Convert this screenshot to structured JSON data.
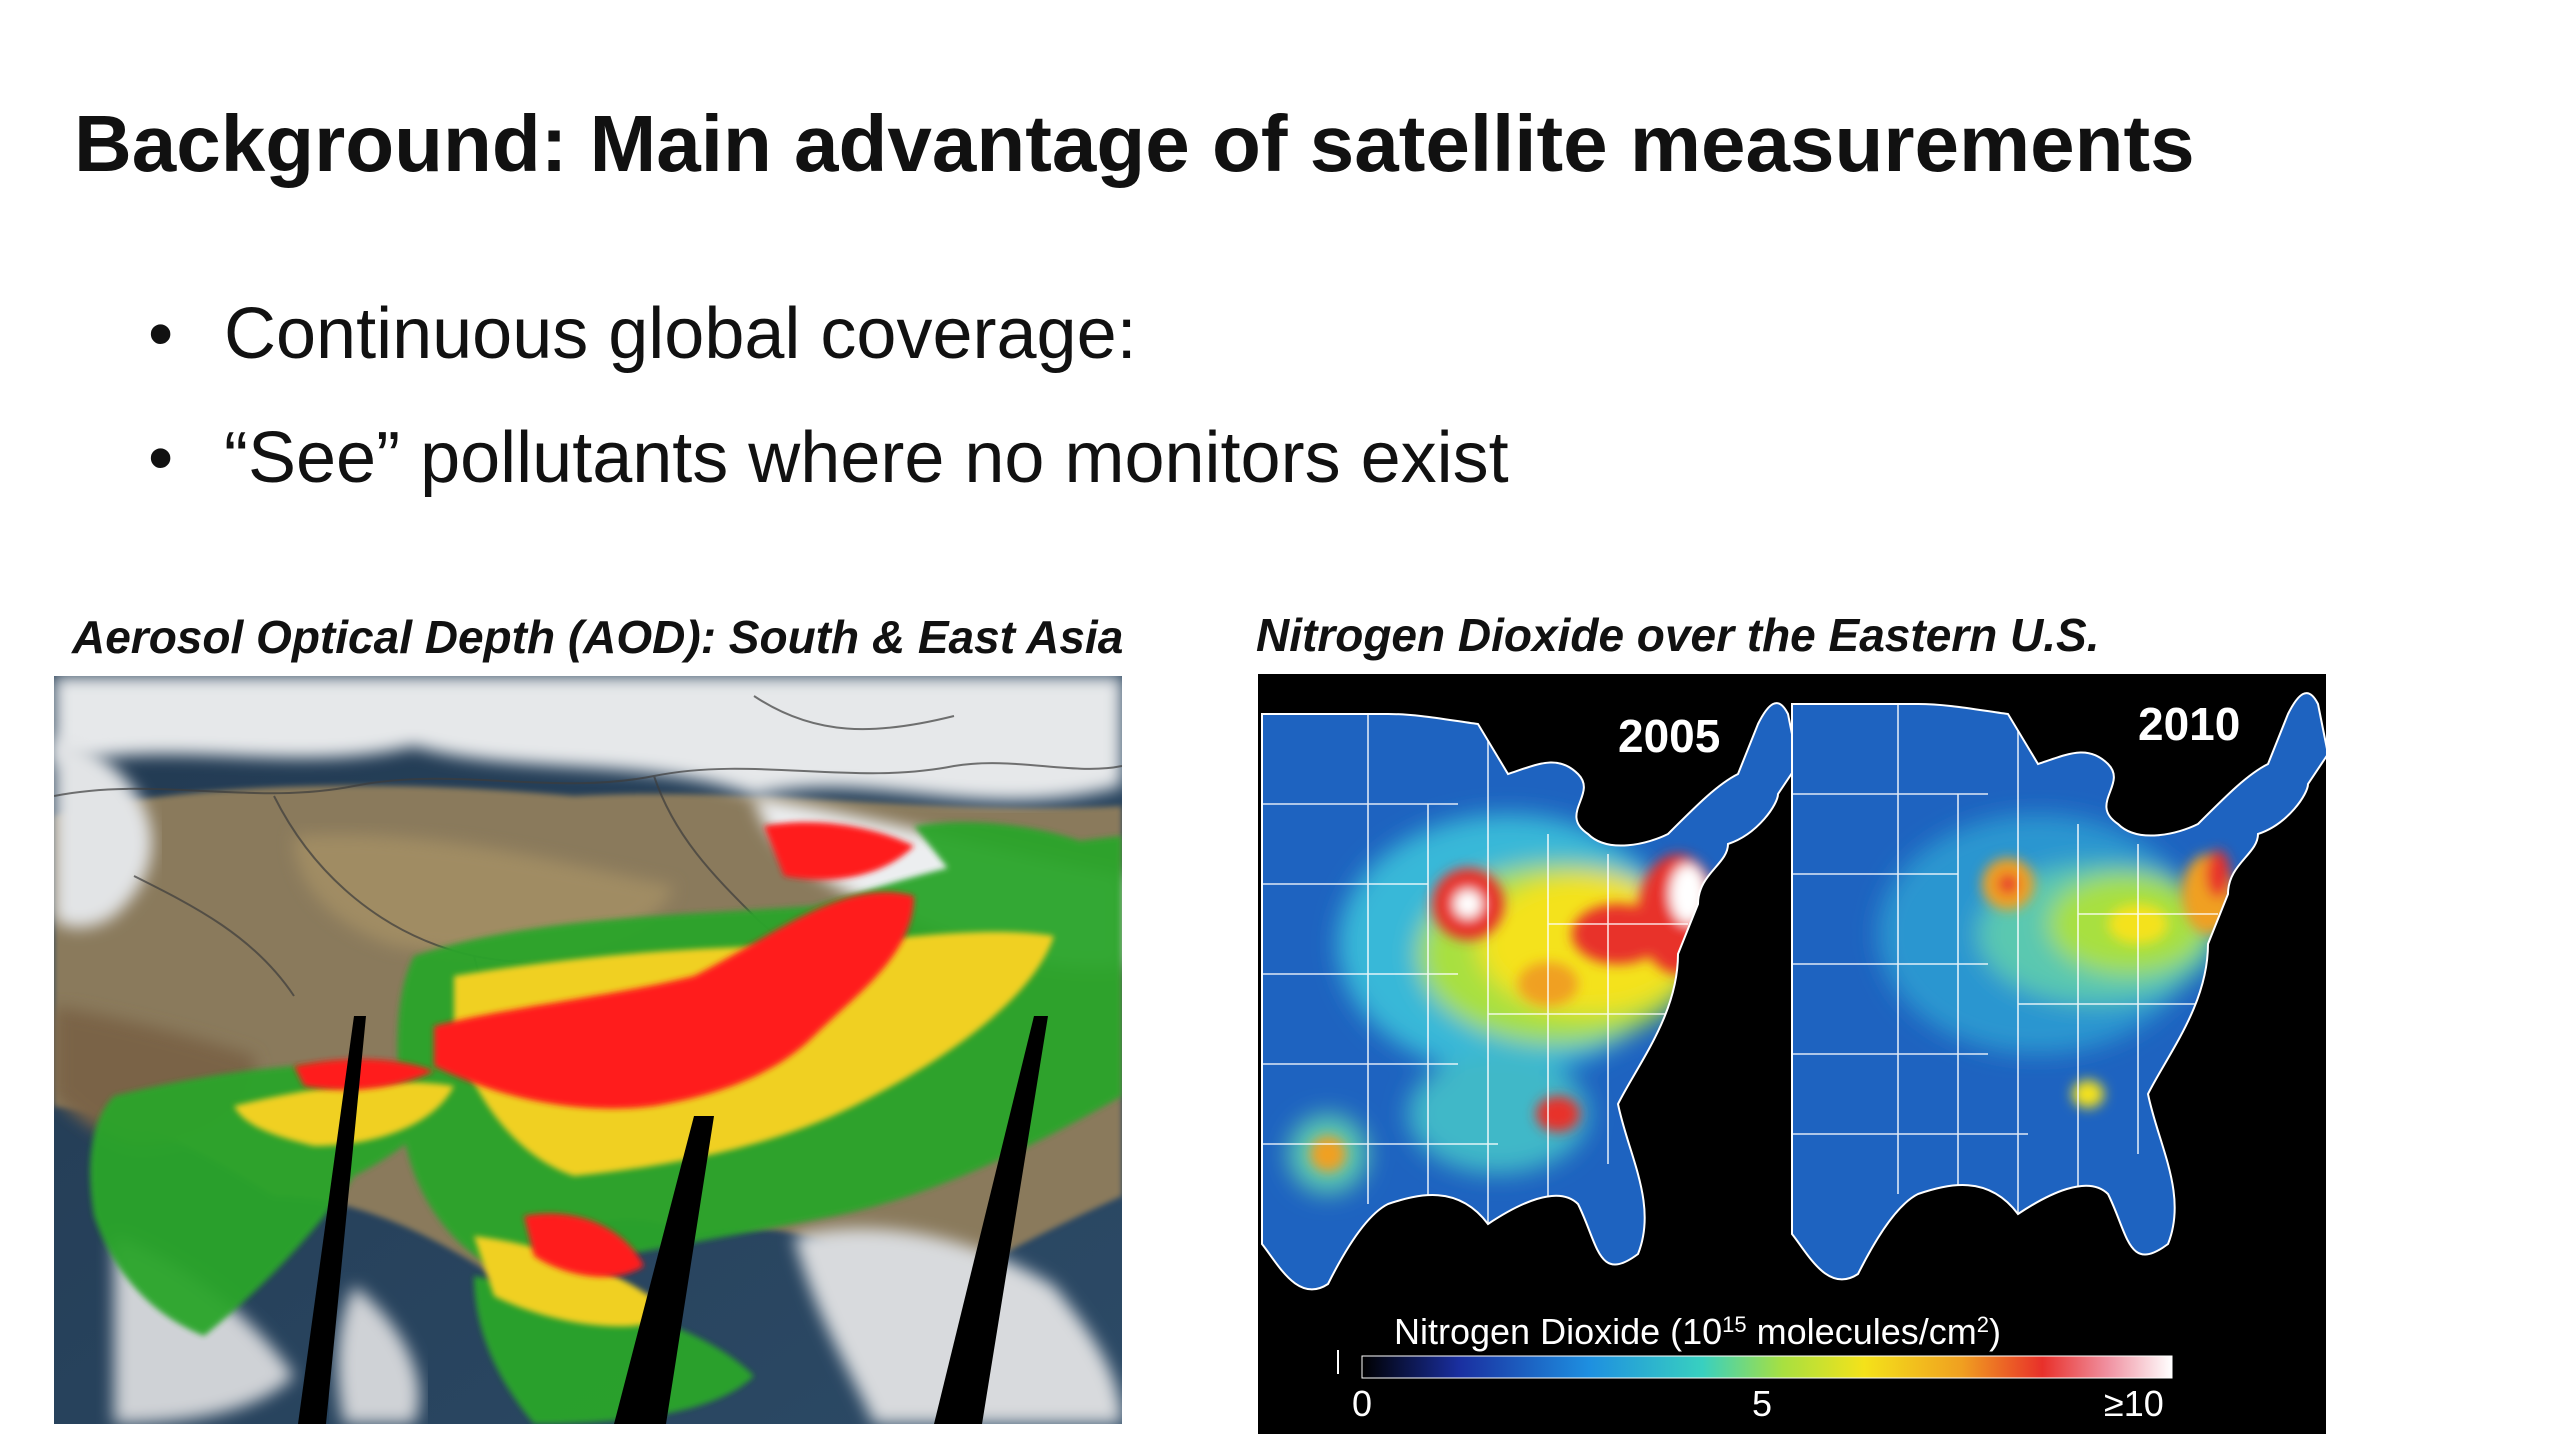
{
  "slide": {
    "title": "Background: Main advantage of satellite measurements",
    "bullets": [
      "Continuous global coverage:",
      "“See” pollutants where no monitors exist"
    ],
    "left_caption": "Aerosol Optical Depth (AOD): South & East Asia",
    "right_caption": "Nitrogen Dioxide over the Eastern U.S."
  },
  "no2_figure": {
    "year_left": "2005",
    "year_right": "2010",
    "colorbar_label": "Nitrogen Dioxide (10",
    "colorbar_exp": "15",
    "colorbar_unit": " molecules/cm",
    "colorbar_unit_exp": "2",
    "colorbar_close": ")",
    "tick_min": "0",
    "tick_mid": "5",
    "tick_max": "≥10"
  },
  "colors": {
    "aod_high": "#ff1a1a",
    "aod_mid": "#f0d020",
    "aod_low": "#2aa52a",
    "no2_background": "#1e63c0",
    "map_outline": "#ffffff"
  }
}
